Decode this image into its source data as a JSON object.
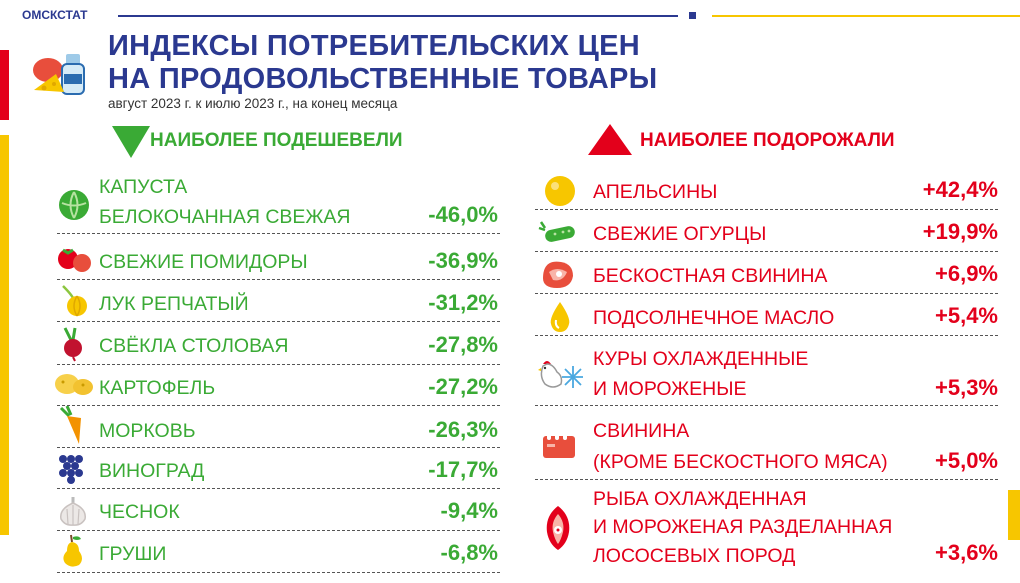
{
  "header": {
    "org": "ОМСКСТАТ",
    "title_line1": "ИНДЕКСЫ ПОТРЕБИТЕЛЬСКИХ ЦЕН",
    "title_line2": "НА ПРОДОВОЛЬСТВЕННЫЕ ТОВАРЫ",
    "subtitle": "август 2023 г. к июлю 2023 г., на конец месяца"
  },
  "colors": {
    "brand": "#2b3990",
    "down": "#3aaa35",
    "up": "#e3001b",
    "accent": "#f7c600"
  },
  "cheaper": {
    "heading": "НАИБОЛЕЕ ПОДЕШЕВЕЛИ",
    "items": [
      {
        "line1": "КАПУСТА",
        "line2": "БЕЛОКОЧАННАЯ СВЕЖАЯ",
        "value": "-46,0%",
        "icon": "cabbage-icon"
      },
      {
        "line1": "СВЕЖИЕ ПОМИДОРЫ",
        "value": "-36,9%",
        "icon": "tomato-icon"
      },
      {
        "line1": "ЛУК РЕПЧАТЫЙ",
        "value": "-31,2%",
        "icon": "onion-icon"
      },
      {
        "line1": "СВЁКЛА СТОЛОВАЯ",
        "value": "-27,8%",
        "icon": "beet-icon"
      },
      {
        "line1": "КАРТОФЕЛЬ",
        "value": "-27,2%",
        "icon": "potato-icon"
      },
      {
        "line1": "МОРКОВЬ",
        "value": "-26,3%",
        "icon": "carrot-icon"
      },
      {
        "line1": "ВИНОГРАД",
        "value": "-17,7%",
        "icon": "grape-icon"
      },
      {
        "line1": "ЧЕСНОК",
        "value": "-9,4%",
        "icon": "garlic-icon"
      },
      {
        "line1": "ГРУШИ",
        "value": "-6,8%",
        "icon": "pear-icon"
      }
    ]
  },
  "pricier": {
    "heading": "НАИБОЛЕЕ ПОДОРОЖАЛИ",
    "items": [
      {
        "line1": "АПЕЛЬСИНЫ",
        "value": "+42,4%",
        "icon": "orange-icon"
      },
      {
        "line1": "СВЕЖИЕ ОГУРЦЫ",
        "value": "+19,9%",
        "icon": "cucumber-icon"
      },
      {
        "line1": "БЕСКОСТНАЯ СВИНИНА",
        "value": "+6,9%",
        "icon": "steak-icon"
      },
      {
        "line1": "ПОДСОЛНЕЧНОЕ МАСЛО",
        "value": "+5,4%",
        "icon": "oil-drop-icon"
      },
      {
        "line1": "КУРЫ ОХЛАЖДЕННЫЕ",
        "line2": "И МОРОЖЕНЫЕ",
        "value": "+5,3%",
        "icon": "chicken-icon"
      },
      {
        "line1": "СВИНИНА",
        "line2": "(КРОМЕ БЕСКОСТНОГО МЯСА)",
        "value": "+5,0%",
        "icon": "pork-ribs-icon"
      },
      {
        "line1": "РЫБА ОХЛАЖДЕННАЯ",
        "line2": "И МОРОЖЕНАЯ РАЗДЕЛАННАЯ",
        "line3": "ЛОСОСЕВЫХ ПОРОД",
        "value": "+3,6%",
        "icon": "salmon-icon"
      }
    ]
  }
}
